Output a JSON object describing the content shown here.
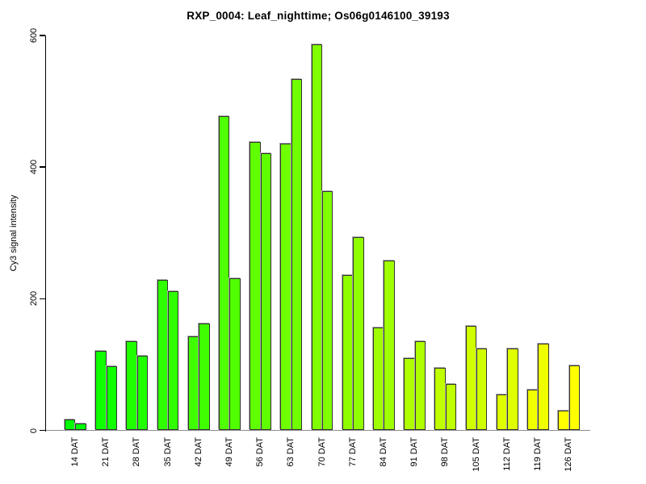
{
  "chart_data": {
    "type": "bar",
    "title": "RXP_0004: Leaf_nighttime; Os06g0146100_39193",
    "ylabel": "Cy3 signal intensity",
    "xlabel": "",
    "ylim": [
      0,
      600
    ],
    "yticks": [
      0,
      200,
      400,
      600
    ],
    "grid": "off",
    "legend": "none",
    "categories": [
      "14 DAT",
      "21 DAT",
      "28 DAT",
      "35 DAT",
      "42 DAT",
      "49 DAT",
      "56 DAT",
      "63 DAT",
      "70 DAT",
      "77 DAT",
      "84 DAT",
      "91 DAT",
      "98 DAT",
      "105 DAT",
      "112 DAT",
      "119 DAT",
      "126 DAT"
    ],
    "series": [
      {
        "name": "left",
        "values": [
          17,
          121,
          136,
          228,
          143,
          478,
          438,
          436,
          586,
          236,
          156,
          110,
          95,
          159,
          55,
          62,
          30
        ]
      },
      {
        "name": "right",
        "values": [
          11,
          98,
          113,
          211,
          162,
          231,
          421,
          534,
          363,
          294,
          258,
          136,
          70,
          125,
          124,
          132,
          99
        ]
      }
    ],
    "group_colors": [
      "#00FF00",
      "#10FF00",
      "#20FF00",
      "#30FF00",
      "#40FF00",
      "#50FF00",
      "#60FF00",
      "#70FF00",
      "#80FF00",
      "#8FFF00",
      "#9FFF00",
      "#AFFF00",
      "#BFFF00",
      "#CFFF00",
      "#DFFF00",
      "#EFFF00",
      "#FFFF00"
    ],
    "bar_border_color": "#333333",
    "axis_color": "#000000",
    "baseline_color": "#8c8c8c"
  }
}
